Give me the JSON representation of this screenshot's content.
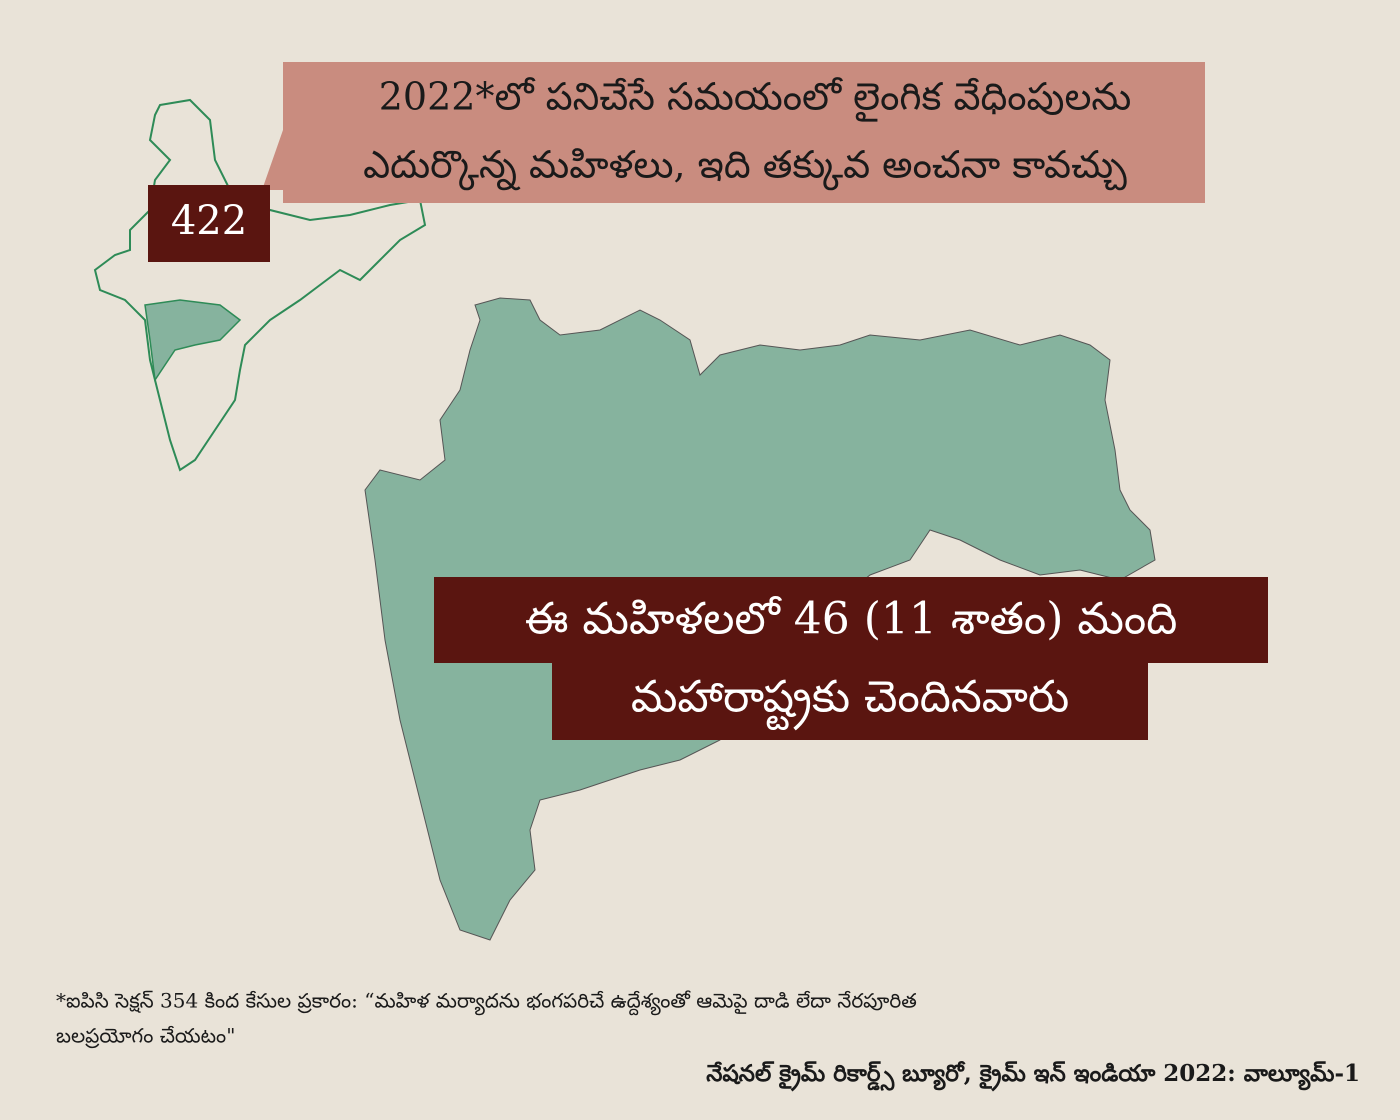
{
  "callout": {
    "number": "422",
    "lines": [
      "2022*లో పనిచేసే సమయంలో లైంగిక వేధింపులను",
      "ఎదుర్కొన్న మహిళలు, ఇది తక్కువ అంచనా కావచ్చు"
    ]
  },
  "highlight": {
    "lines": [
      "ఈ మహిళలలో 46 (11 శాతం) మంది",
      "మహారాష్ట్రకు చెందినవారు"
    ]
  },
  "footnote": {
    "lines": [
      "*ఐపిసి సెక్షన్ 354 కింద కేసుల ప్రకారం: “మహిళ మర్యాదను భంగపరిచే ఉద్దేశ్యంతో ఆమెపై దాడి లేదా నేరపూరిత",
      "బలప్రయోగం చేయటం\""
    ]
  },
  "source": "నేషనల్ క్రైమ్ రికార్డ్స్ బ్యూరో, క్రైమ్ ఇన్ ఇండియా 2022: వాల్యూమ్-1"
}
